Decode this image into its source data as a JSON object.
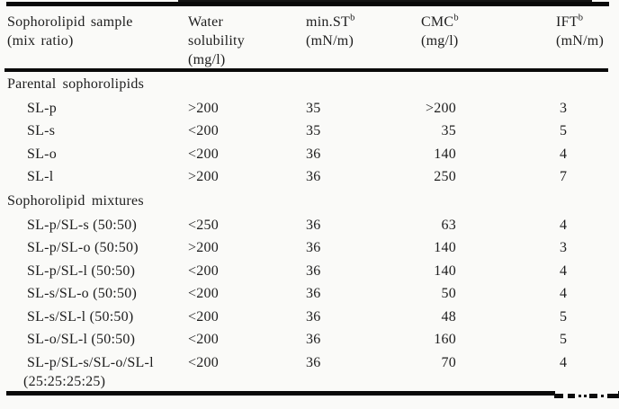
{
  "theme": {
    "bg": "#fafaf8",
    "text": "#1d1d1d",
    "rule": "#0a0a0a"
  },
  "table": {
    "header": {
      "sample_line1": "Sophorolipid sample",
      "sample_line2": "(mix ratio)",
      "water_line1": "Water",
      "water_line2": "solubility",
      "water_line3": "(mg/l)",
      "minst_line1": "min.ST",
      "minst_line2": "(mN/m)",
      "cmc_line1": "CMC",
      "cmc_line2": "(mg/l)",
      "ift_line1": "IFT",
      "ift_line2": "(mN/m)",
      "footnote_mark": "b"
    },
    "sections": [
      {
        "heading": "Parental sophorolipids",
        "rows": [
          {
            "sample": "SL-p",
            "water_solubility": ">200",
            "min_st": "35",
            "cmc": ">200",
            "ift": "3"
          },
          {
            "sample": "SL-s",
            "water_solubility": "<200",
            "min_st": "35",
            "cmc": "35",
            "ift": "5"
          },
          {
            "sample": "SL-o",
            "water_solubility": "<200",
            "min_st": "36",
            "cmc": "140",
            "ift": "4"
          },
          {
            "sample": "SL-l",
            "water_solubility": ">200",
            "min_st": "36",
            "cmc": "250",
            "ift": "7"
          }
        ]
      },
      {
        "heading": "Sophorolipid mixtures",
        "rows": [
          {
            "sample": "SL-p/SL-s (50:50)",
            "water_solubility": "<250",
            "min_st": "36",
            "cmc": "63",
            "ift": "4"
          },
          {
            "sample": "SL-p/SL-o (50:50)",
            "water_solubility": ">200",
            "min_st": "36",
            "cmc": "140",
            "ift": "3"
          },
          {
            "sample": "SL-p/SL-l (50:50)",
            "water_solubility": "<200",
            "min_st": "36",
            "cmc": "140",
            "ift": "4"
          },
          {
            "sample": "SL-s/SL-o (50:50)",
            "water_solubility": "<200",
            "min_st": "36",
            "cmc": "50",
            "ift": "4"
          },
          {
            "sample": "SL-s/SL-l (50:50)",
            "water_solubility": "<200",
            "min_st": "36",
            "cmc": "48",
            "ift": "5"
          },
          {
            "sample": "SL-o/SL-l (50:50)",
            "water_solubility": "<200",
            "min_st": "36",
            "cmc": "160",
            "ift": "5"
          },
          {
            "sample": "SL-p/SL-s/SL-o/SL-l",
            "sample_line2": "(25:25:25:25)",
            "water_solubility": "<200",
            "min_st": "36",
            "cmc": "70",
            "ift": "4"
          }
        ]
      }
    ]
  }
}
